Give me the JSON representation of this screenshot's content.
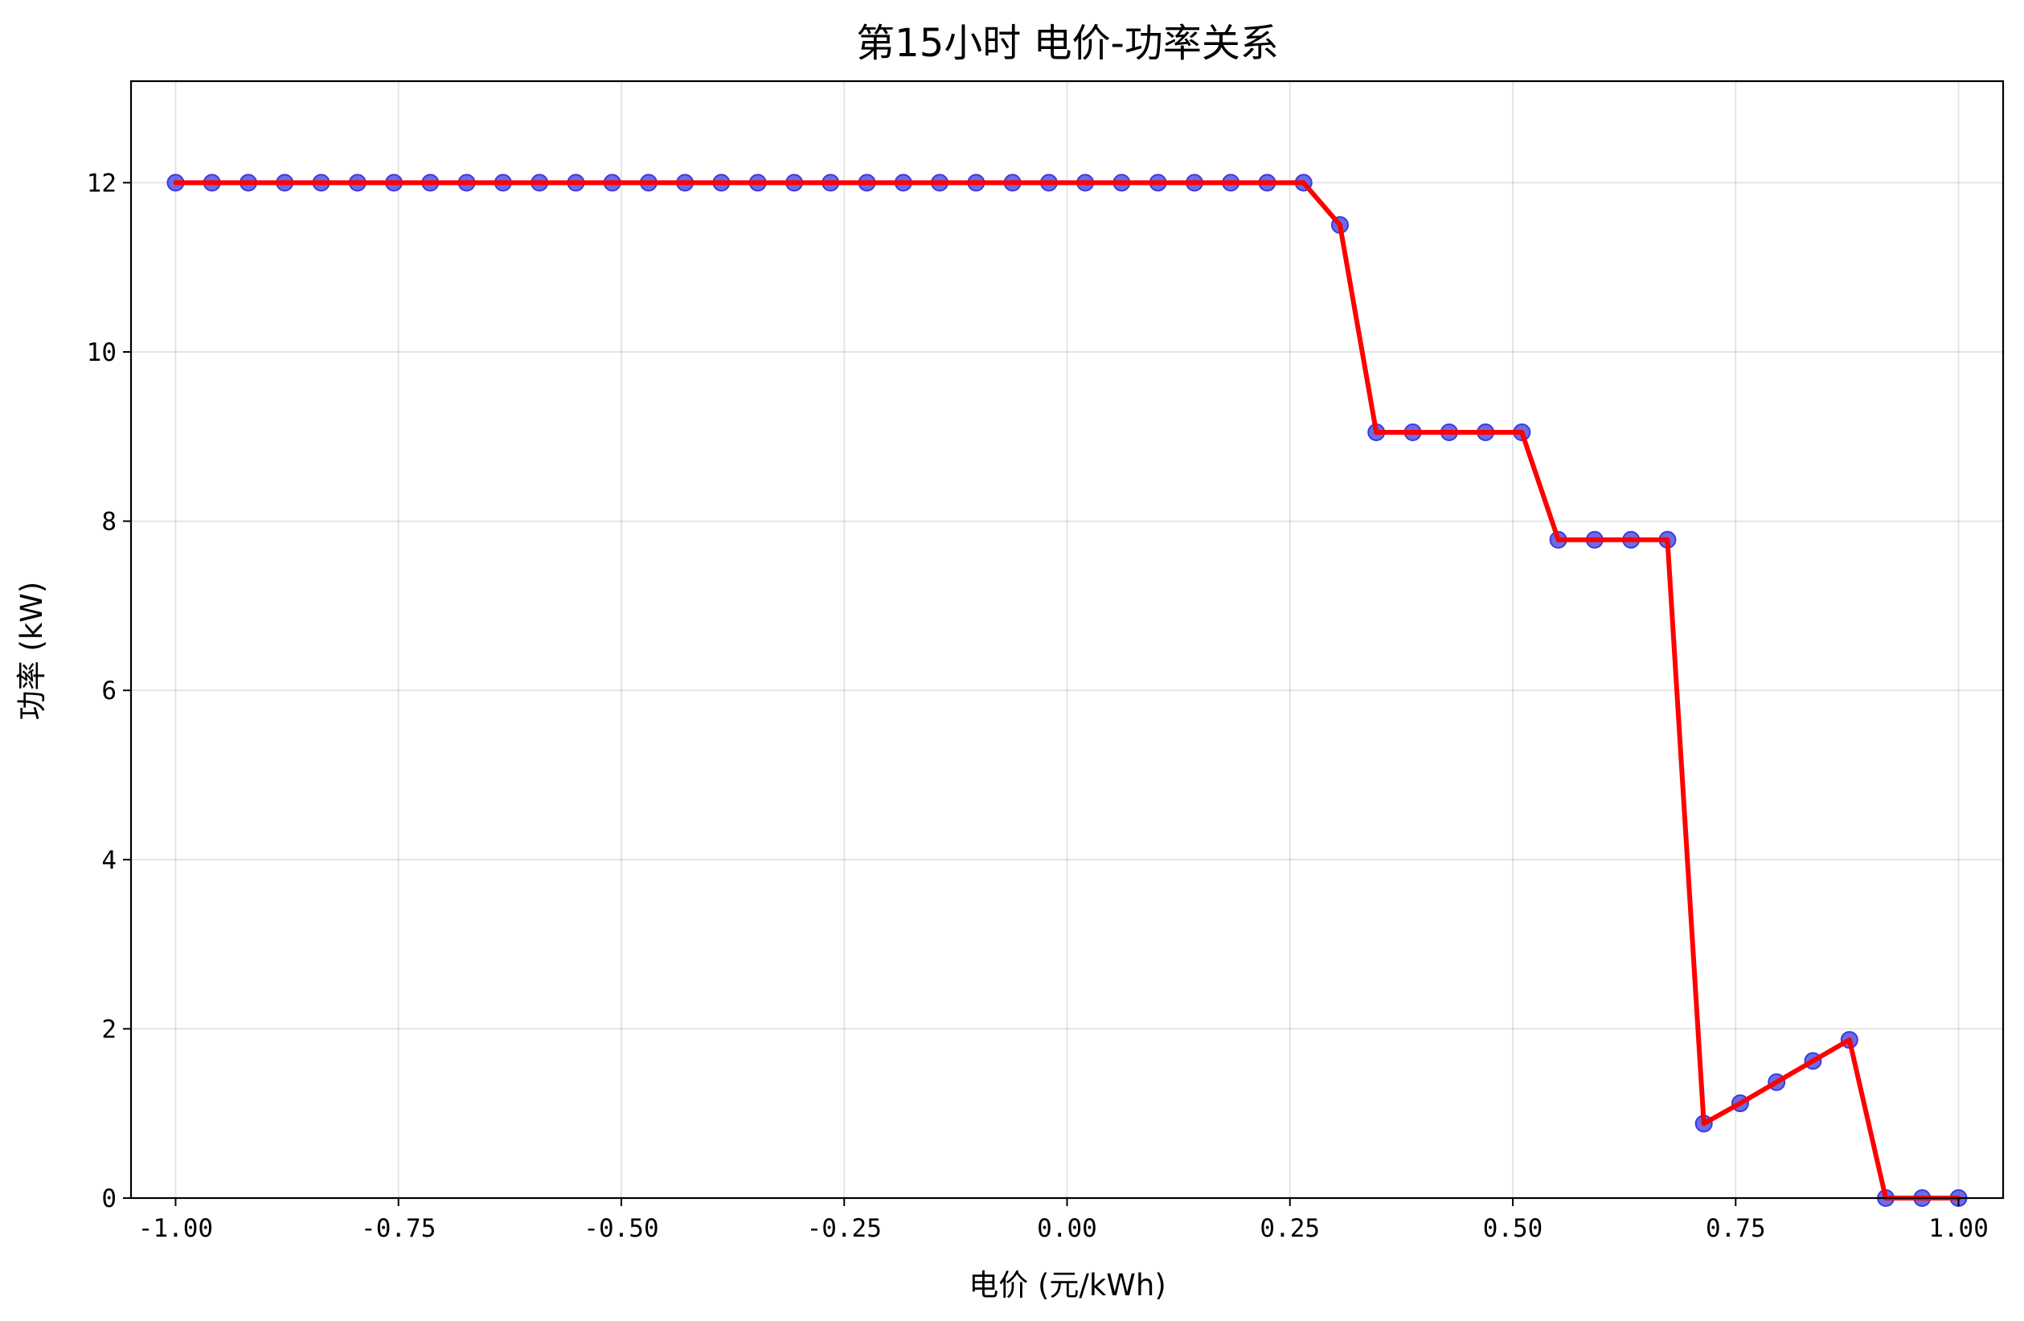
{
  "chart_data": {
    "type": "line",
    "title": "第15小时 电价-功率关系",
    "xlabel": "电价 (元/kWh)",
    "ylabel": "功率 (kW)",
    "xlim": [
      -1.05,
      1.05
    ],
    "ylim": [
      0,
      13.2
    ],
    "grid": true,
    "x_ticks": [
      -1.0,
      -0.75,
      -0.5,
      -0.25,
      0.0,
      0.25,
      0.5,
      0.75,
      1.0
    ],
    "x_tick_labels": [
      "-1.00",
      "-0.75",
      "-0.50",
      "-0.25",
      "0.00",
      "0.25",
      "0.50",
      "0.75",
      "1.00"
    ],
    "y_ticks": [
      0,
      2,
      4,
      6,
      8,
      10,
      12
    ],
    "y_tick_labels": [
      "0",
      "2",
      "4",
      "6",
      "8",
      "10",
      "12"
    ],
    "series": [
      {
        "line_color": "#ff0000",
        "marker_color": "#3b3bdd",
        "x": [
          -1.0,
          -0.9592,
          -0.9184,
          -0.8776,
          -0.8367,
          -0.7959,
          -0.7551,
          -0.7143,
          -0.6735,
          -0.6327,
          -0.5918,
          -0.551,
          -0.5102,
          -0.4694,
          -0.4286,
          -0.3878,
          -0.3469,
          -0.3061,
          -0.2653,
          -0.2245,
          -0.1837,
          -0.1429,
          -0.102,
          -0.0612,
          -0.0204,
          0.0204,
          0.0612,
          0.102,
          0.1429,
          0.1837,
          0.2245,
          0.2653,
          0.3061,
          0.3469,
          0.3878,
          0.4286,
          0.4694,
          0.5102,
          0.551,
          0.5918,
          0.6327,
          0.6735,
          0.7143,
          0.7551,
          0.7959,
          0.8367,
          0.8776,
          0.9184,
          0.9592,
          1.0
        ],
        "y": [
          12,
          12,
          12,
          12,
          12,
          12,
          12,
          12,
          12,
          12,
          12,
          12,
          12,
          12,
          12,
          12,
          12,
          12,
          12,
          12,
          12,
          12,
          12,
          12,
          12,
          12,
          12,
          12,
          12,
          12,
          12,
          12,
          11.5,
          9.05,
          9.05,
          9.05,
          9.05,
          9.05,
          7.78,
          7.78,
          7.78,
          7.78,
          0.88,
          1.12,
          1.37,
          1.62,
          1.87,
          0,
          0,
          0
        ]
      }
    ]
  }
}
